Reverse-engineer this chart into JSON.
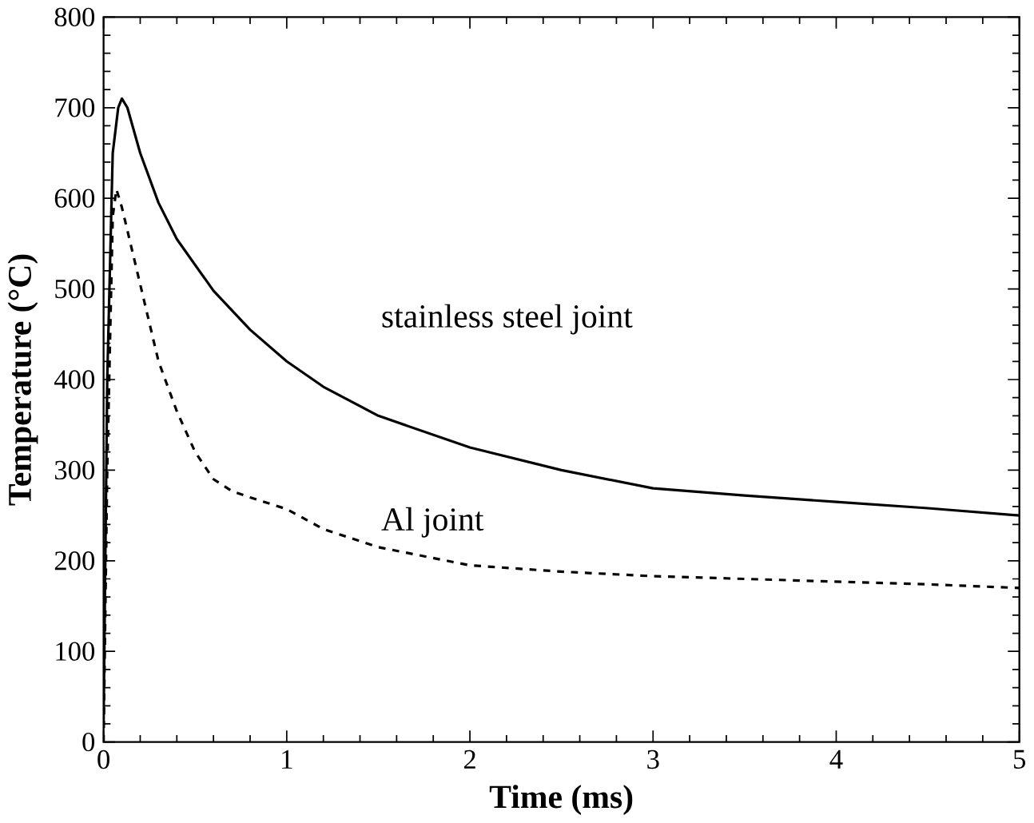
{
  "chart_data": {
    "type": "line",
    "xlabel": "Time (ms)",
    "ylabel": "Temperature (°C)",
    "xlim": [
      0,
      5
    ],
    "ylim": [
      0,
      800
    ],
    "xticks": [
      0,
      1,
      2,
      3,
      4,
      5
    ],
    "yticks": [
      0,
      100,
      200,
      300,
      400,
      500,
      600,
      700,
      800
    ],
    "grid": false,
    "legend": false,
    "marker": "none",
    "series": [
      {
        "name": "stainless steel joint",
        "color": "#000000",
        "line_style": "solid",
        "x": [
          0,
          0.02,
          0.05,
          0.08,
          0.1,
          0.13,
          0.2,
          0.3,
          0.4,
          0.6,
          0.8,
          1.0,
          1.2,
          1.5,
          2.0,
          2.5,
          3.0,
          3.5,
          4.0,
          4.5,
          5.0
        ],
        "values": [
          20,
          400,
          650,
          700,
          710,
          700,
          650,
          595,
          555,
          498,
          455,
          420,
          392,
          360,
          325,
          300,
          280,
          272,
          265,
          258,
          250
        ]
      },
      {
        "name": "Al joint",
        "color": "#000000",
        "line_style": "dashed",
        "x": [
          0,
          0.02,
          0.05,
          0.07,
          0.1,
          0.2,
          0.3,
          0.4,
          0.5,
          0.6,
          0.7,
          0.8,
          1.0,
          1.2,
          1.5,
          2.0,
          2.5,
          3.0,
          3.5,
          4.0,
          4.5,
          5.0
        ],
        "values": [
          0,
          300,
          580,
          610,
          590,
          505,
          420,
          365,
          320,
          290,
          277,
          270,
          257,
          235,
          215,
          195,
          188,
          183,
          180,
          177,
          174,
          170
        ]
      }
    ]
  }
}
